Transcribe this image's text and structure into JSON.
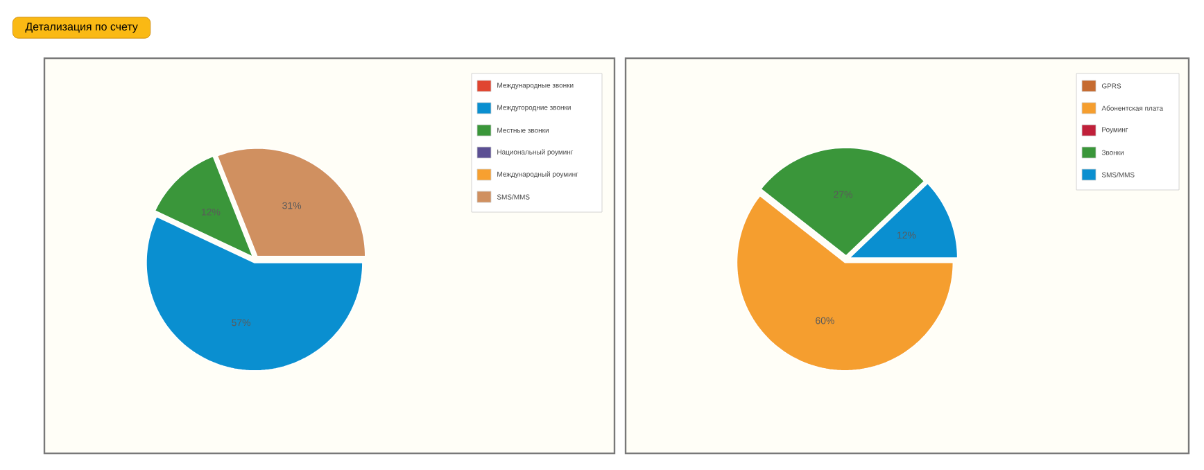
{
  "chart_data": [
    {
      "type": "pie",
      "annotations": [
        "Детализация по счету"
      ],
      "categories": [
        "Международные звонки",
        "Междугородние звонки",
        "Местные звонки",
        "Национальный роуминг",
        "Международный роуминг",
        "SMS/MMS"
      ],
      "values": [
        0,
        57,
        12,
        0,
        0,
        31
      ],
      "value_labels": [
        null,
        "57%",
        "12%",
        null,
        null,
        "31%"
      ],
      "colors": [
        "#e04530",
        "#0a8fd0",
        "#3a963a",
        "#5b4f93",
        "#f7a030",
        "#d09060"
      ],
      "legend": "top right"
    },
    {
      "type": "pie",
      "categories": [
        "GPRS",
        "Абонентская плата",
        "Роуминг",
        "Звонки",
        "SMS/MMS"
      ],
      "values": [
        0,
        60,
        0,
        27,
        12
      ],
      "value_labels": [
        null,
        "60%",
        null,
        "27%",
        "12%"
      ],
      "colors": [
        "#c66b30",
        "#f59e2f",
        "#c0203a",
        "#3a963a",
        "#0a8fd0"
      ],
      "legend": "top right"
    }
  ]
}
